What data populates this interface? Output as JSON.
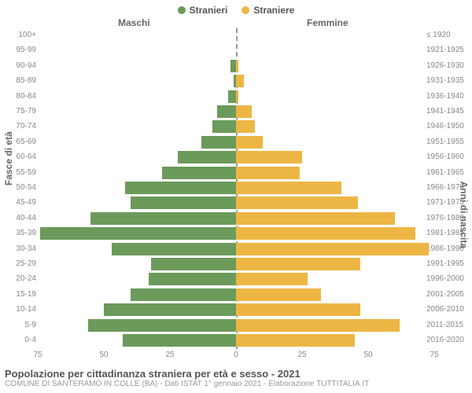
{
  "legend": {
    "male": "Stranieri",
    "female": "Straniere"
  },
  "colors": {
    "male": "#6b9a5b",
    "female": "#edb644",
    "text": "#666"
  },
  "headers": {
    "left": "Maschi",
    "right": "Femmine"
  },
  "ylabels": {
    "left": "Fasce di età",
    "right": "Anni di nascita"
  },
  "chart": {
    "type": "population-pyramid",
    "xmax": 75,
    "xticks_left": [
      75,
      50,
      25,
      0
    ],
    "xticks_right": [
      0,
      25,
      50,
      75
    ],
    "row_height": 19.4,
    "bar_colors": {
      "male": "#6b9a5b",
      "female": "#edb644"
    },
    "background_color": "#ffffff",
    "font_size_axis": 10,
    "rows": [
      {
        "age": "100+",
        "birth": "≤ 1920",
        "m": 0,
        "f": 0
      },
      {
        "age": "95-99",
        "birth": "1921-1925",
        "m": 0,
        "f": 0
      },
      {
        "age": "90-94",
        "birth": "1926-1930",
        "m": 2,
        "f": 1
      },
      {
        "age": "85-89",
        "birth": "1931-1935",
        "m": 1,
        "f": 3
      },
      {
        "age": "80-84",
        "birth": "1936-1940",
        "m": 3,
        "f": 1
      },
      {
        "age": "75-79",
        "birth": "1941-1945",
        "m": 7,
        "f": 6
      },
      {
        "age": "70-74",
        "birth": "1946-1950",
        "m": 9,
        "f": 7
      },
      {
        "age": "65-69",
        "birth": "1951-1955",
        "m": 13,
        "f": 10
      },
      {
        "age": "60-64",
        "birth": "1956-1960",
        "m": 22,
        "f": 25
      },
      {
        "age": "55-59",
        "birth": "1961-1965",
        "m": 28,
        "f": 24
      },
      {
        "age": "50-54",
        "birth": "1966-1970",
        "m": 42,
        "f": 40
      },
      {
        "age": "45-49",
        "birth": "1971-1975",
        "m": 40,
        "f": 46
      },
      {
        "age": "40-44",
        "birth": "1976-1980",
        "m": 55,
        "f": 60
      },
      {
        "age": "35-39",
        "birth": "1981-1985",
        "m": 74,
        "f": 68
      },
      {
        "age": "30-34",
        "birth": "1986-1990",
        "m": 47,
        "f": 73
      },
      {
        "age": "25-29",
        "birth": "1991-1995",
        "m": 32,
        "f": 47
      },
      {
        "age": "20-24",
        "birth": "1996-2000",
        "m": 33,
        "f": 27
      },
      {
        "age": "15-19",
        "birth": "2001-2005",
        "m": 40,
        "f": 32
      },
      {
        "age": "10-14",
        "birth": "2006-2010",
        "m": 50,
        "f": 47
      },
      {
        "age": "5-9",
        "birth": "2011-2015",
        "m": 56,
        "f": 62
      },
      {
        "age": "0-4",
        "birth": "2016-2020",
        "m": 43,
        "f": 45
      }
    ]
  },
  "title": "Popolazione per cittadinanza straniera per età e sesso - 2021",
  "subtitle": "COMUNE DI SANTERAMO IN COLLE (BA) - Dati ISTAT 1° gennaio 2021 - Elaborazione TUTTITALIA.IT"
}
